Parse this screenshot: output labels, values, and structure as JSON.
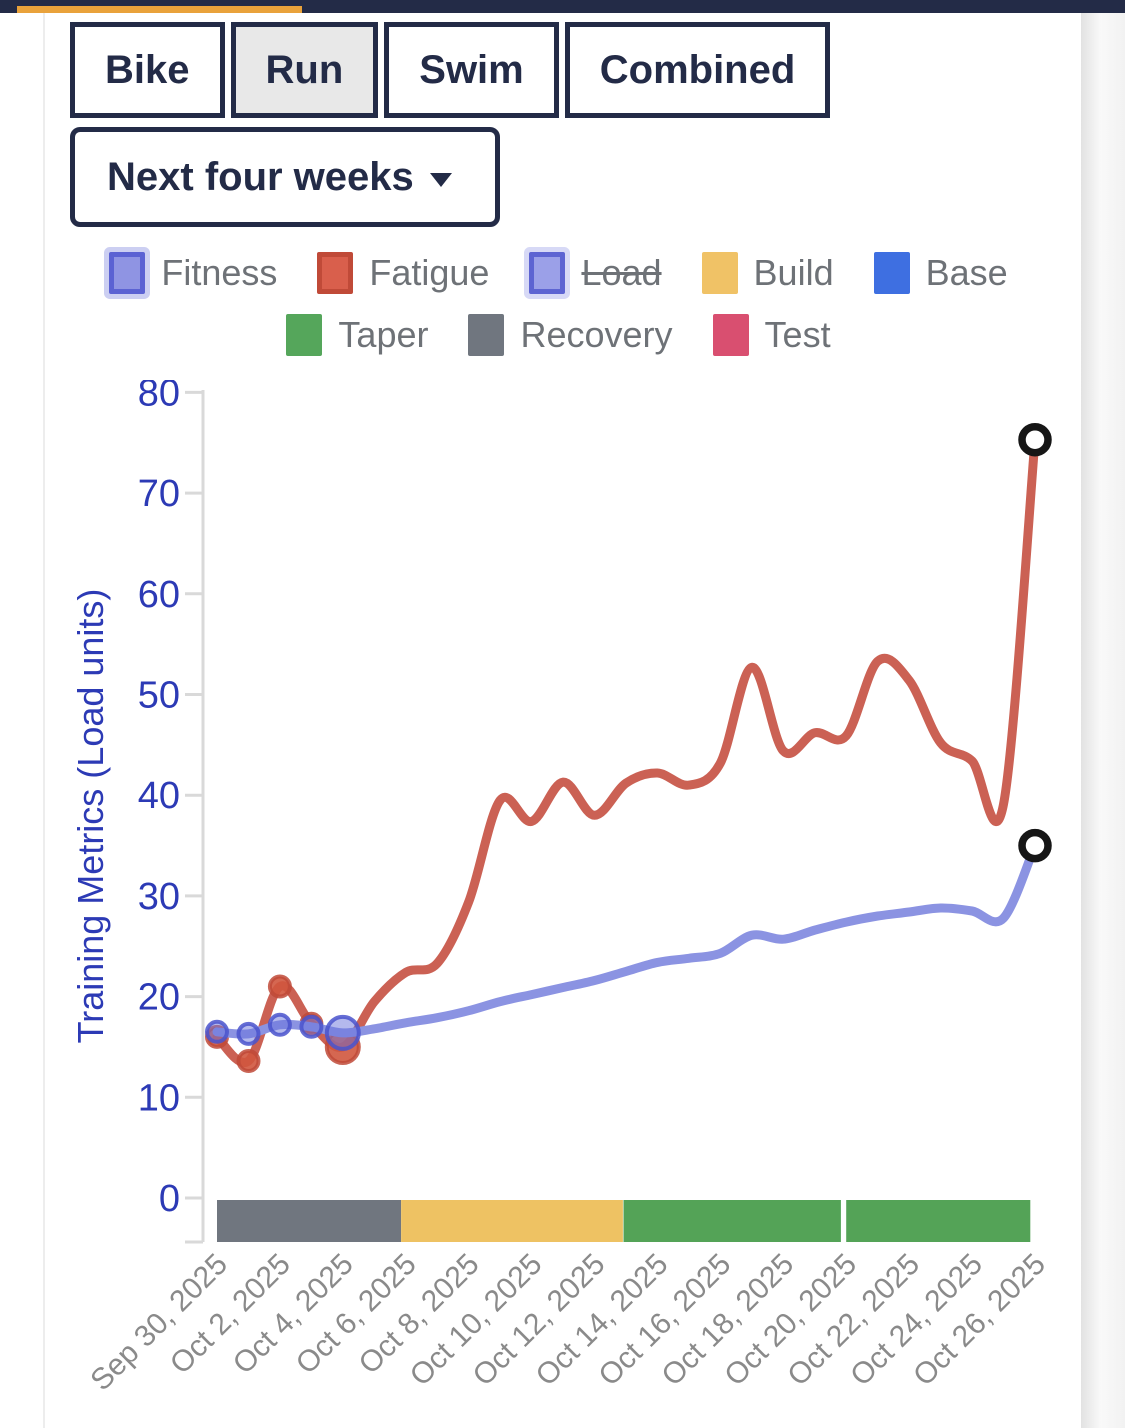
{
  "top_bar": {
    "color": "#232b47",
    "accent_color": "#e9a23b"
  },
  "tabs": {
    "items": [
      {
        "label": "Bike",
        "active": false
      },
      {
        "label": "Run",
        "active": true
      },
      {
        "label": "Swim",
        "active": false
      },
      {
        "label": "Combined",
        "active": false
      }
    ]
  },
  "period_dropdown": {
    "label": "Next four weeks"
  },
  "legend": {
    "rows": [
      [
        {
          "label": "Fitness",
          "fill": "#8f94e3",
          "border": "#5b62d3",
          "halo": "rgba(143,148,227,0.45)",
          "strike": false
        },
        {
          "label": "Fatigue",
          "fill": "#d95f4c",
          "border": "#c04a38",
          "halo": "",
          "strike": false
        },
        {
          "label": "Load",
          "fill": "#9ba0e8",
          "border": "#5d64d2",
          "halo": "rgba(155,160,232,0.4)",
          "strike": true
        },
        {
          "label": "Build",
          "fill": "#f0c266",
          "border": "",
          "halo": "",
          "strike": false
        },
        {
          "label": "Base",
          "fill": "#3e6fe1",
          "border": "",
          "halo": "",
          "strike": false
        }
      ],
      [
        {
          "label": "Taper",
          "fill": "#55a65b",
          "border": "",
          "halo": "",
          "strike": false
        },
        {
          "label": "Recovery",
          "fill": "#70767f",
          "border": "",
          "halo": "",
          "strike": false
        },
        {
          "label": "Test",
          "fill": "#d94f70",
          "border": "",
          "halo": "",
          "strike": false
        }
      ]
    ]
  },
  "chart_data": {
    "type": "line",
    "title": "",
    "xlabel": "",
    "ylabel": "Training Metrics (Load units)",
    "ylim": [
      0,
      80
    ],
    "yticks": [
      0,
      10,
      20,
      30,
      40,
      50,
      60,
      70,
      80
    ],
    "grid": false,
    "legend_position": "top",
    "x_unit": "day",
    "x_start": "Sep 30, 2025",
    "x_days_span": 26,
    "x_tick_every_days": 2,
    "x_tick_labels": [
      "Sep 30, 2025",
      "Oct 2, 2025",
      "Oct 4, 2025",
      "Oct 6, 2025",
      "Oct 8, 2025",
      "Oct 10, 2025",
      "Oct 12, 2025",
      "Oct 14, 2025",
      "Oct 16, 2025",
      "Oct 18, 2025",
      "Oct 20, 2025",
      "Oct 22, 2025",
      "Oct 24, 2025",
      "Oct 26, 2025"
    ],
    "series": [
      {
        "name": "Fatigue",
        "color": "#cb6154",
        "marker_ring": "#c04a38",
        "marker_fill": "#d0563e",
        "marker_fill_opacity": 0.9,
        "markers_through_index": 4,
        "big_marker_index": 4,
        "end_open_circle": true,
        "values": [
          16.0,
          13.6,
          21.0,
          17.3,
          15.0,
          19.5,
          22.4,
          23.3,
          29.4,
          39.5,
          37.4,
          41.3,
          38.0,
          41.2,
          42.2,
          41.0,
          43.2,
          52.7,
          44.4,
          46.2,
          45.9,
          53.3,
          51.4,
          45.2,
          43.4,
          39.1,
          75.3
        ]
      },
      {
        "name": "Fitness",
        "color": "#8b93e2",
        "marker_ring": "#4a54cd",
        "marker_fill": "#6a73dc",
        "marker_fill_opacity": 0.5,
        "markers_through_index": 4,
        "big_marker_index": 4,
        "end_open_circle": true,
        "values": [
          16.5,
          16.3,
          17.2,
          17.0,
          16.4,
          16.8,
          17.4,
          17.9,
          18.6,
          19.5,
          20.2,
          20.9,
          21.6,
          22.5,
          23.4,
          23.8,
          24.3,
          26.1,
          25.7,
          26.6,
          27.4,
          28.0,
          28.4,
          28.8,
          28.5,
          27.8,
          35.0
        ]
      }
    ],
    "phase_bands": [
      {
        "name": "Recovery",
        "color": "#70767f",
        "start_day": 0,
        "end_day": 5.85
      },
      {
        "name": "Build",
        "color": "#eec263",
        "start_day": 5.85,
        "end_day": 12.9
      },
      {
        "name": "Taper",
        "color": "#54a357",
        "start_day": 12.92,
        "end_day": 19.83
      },
      {
        "name": "Taper",
        "color": "#54a357",
        "start_day": 20.0,
        "end_day": 25.85
      }
    ],
    "axis_colors": {
      "tick_label": "#2c3ab5",
      "axis_line": "#d9d9d9",
      "date_label": "#8a8a8a"
    }
  }
}
